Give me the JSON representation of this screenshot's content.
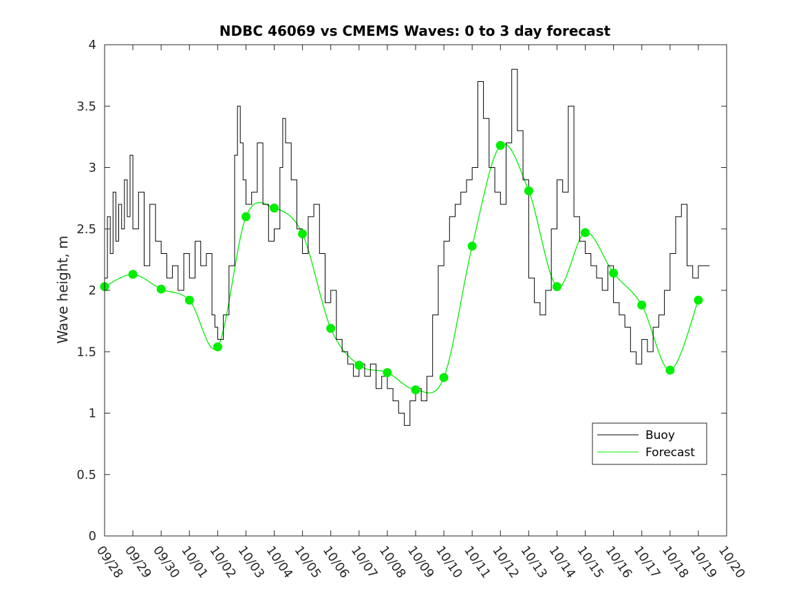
{
  "chart_data": {
    "type": "line",
    "title": "NDBC 46069 vs CMEMS Waves: 0 to 3 day forecast",
    "xlabel": "",
    "ylabel": "Wave height, m",
    "xlim": [
      0,
      22
    ],
    "ylim": [
      0,
      4
    ],
    "y_ticks": [
      0,
      0.5,
      1,
      1.5,
      2,
      2.5,
      3,
      3.5,
      4
    ],
    "y_tick_labels": [
      "0",
      "0.5",
      "1",
      "1.5",
      "2",
      "2.5",
      "3",
      "3.5",
      "4"
    ],
    "x_ticks": [
      0,
      1,
      2,
      3,
      4,
      5,
      6,
      7,
      8,
      9,
      10,
      11,
      12,
      13,
      14,
      15,
      16,
      17,
      18,
      19,
      20,
      21,
      22
    ],
    "x_tick_labels": [
      "09/28",
      "09/29",
      "09/30",
      "10/01",
      "10/02",
      "10/03",
      "10/04",
      "10/05",
      "10/06",
      "10/07",
      "10/08",
      "10/09",
      "10/10",
      "10/11",
      "10/12",
      "10/13",
      "10/14",
      "10/15",
      "10/16",
      "10/17",
      "10/18",
      "10/19",
      "10/20"
    ],
    "grid": false,
    "legend": {
      "placement": "bottom-right",
      "entries": [
        "Buoy",
        "Forecast"
      ]
    },
    "colors": {
      "buoy": "#000000",
      "forecast": "#00ee00"
    },
    "series": [
      {
        "name": "Buoy",
        "x": [
          0,
          0.1,
          0.2,
          0.3,
          0.4,
          0.5,
          0.6,
          0.7,
          0.8,
          0.9,
          1.0,
          1.2,
          1.4,
          1.6,
          1.8,
          2.0,
          2.2,
          2.4,
          2.6,
          2.8,
          3.0,
          3.2,
          3.4,
          3.6,
          3.8,
          3.9,
          4.0,
          4.2,
          4.4,
          4.6,
          4.7,
          4.8,
          4.9,
          5.0,
          5.2,
          5.4,
          5.6,
          5.8,
          6.0,
          6.2,
          6.3,
          6.4,
          6.6,
          6.8,
          7.0,
          7.2,
          7.4,
          7.6,
          7.8,
          8.0,
          8.2,
          8.4,
          8.6,
          8.8,
          9.0,
          9.2,
          9.4,
          9.6,
          9.8,
          10.0,
          10.2,
          10.4,
          10.6,
          10.8,
          11.0,
          11.2,
          11.4,
          11.6,
          11.8,
          12.0,
          12.2,
          12.4,
          12.6,
          12.8,
          13.0,
          13.2,
          13.4,
          13.6,
          13.8,
          14.0,
          14.2,
          14.4,
          14.6,
          14.8,
          15.0,
          15.2,
          15.4,
          15.6,
          15.8,
          16.0,
          16.2,
          16.4,
          16.6,
          16.8,
          17.0,
          17.2,
          17.4,
          17.6,
          17.8,
          18.0,
          18.2,
          18.4,
          18.6,
          18.8,
          19.0,
          19.2,
          19.4,
          19.6,
          19.8,
          20.0,
          20.2,
          20.4,
          20.6,
          20.8,
          21.0,
          21.2,
          21.4
        ],
        "values": [
          2.1,
          2.6,
          2.3,
          2.8,
          2.4,
          2.7,
          2.5,
          2.9,
          2.6,
          3.1,
          2.5,
          2.8,
          2.2,
          2.7,
          2.4,
          2.3,
          2.1,
          2.2,
          2.0,
          2.3,
          2.1,
          2.4,
          2.2,
          2.3,
          1.8,
          1.7,
          1.6,
          1.8,
          2.2,
          3.1,
          3.5,
          3.2,
          2.9,
          2.7,
          2.8,
          3.2,
          2.7,
          2.4,
          2.5,
          3.0,
          3.4,
          3.2,
          2.9,
          2.5,
          2.3,
          2.6,
          2.7,
          2.3,
          1.9,
          2.0,
          1.6,
          1.5,
          1.4,
          1.3,
          1.4,
          1.3,
          1.4,
          1.2,
          1.3,
          1.2,
          1.1,
          1.0,
          0.9,
          1.1,
          1.2,
          1.1,
          1.3,
          1.8,
          2.2,
          2.4,
          2.6,
          2.7,
          2.8,
          2.9,
          3.0,
          3.7,
          3.4,
          3.0,
          2.8,
          2.7,
          3.2,
          3.8,
          3.3,
          2.9,
          2.1,
          1.9,
          1.8,
          2.0,
          2.5,
          2.9,
          2.8,
          3.5,
          2.6,
          2.4,
          2.3,
          2.2,
          2.1,
          2.0,
          2.2,
          1.9,
          1.8,
          1.7,
          1.5,
          1.4,
          1.6,
          1.5,
          1.7,
          1.8,
          2.0,
          2.3,
          2.6,
          2.7,
          2.2,
          2.1,
          2.2,
          2.2,
          2.2
        ]
      },
      {
        "name": "Forecast",
        "x": [
          0,
          1,
          2,
          3,
          4,
          5,
          6,
          7,
          8,
          9,
          10,
          11,
          12,
          13,
          14,
          15,
          16,
          17,
          18,
          19,
          20,
          21
        ],
        "values": [
          2.03,
          2.13,
          2.01,
          1.92,
          1.54,
          2.6,
          2.67,
          2.46,
          1.69,
          1.39,
          1.33,
          1.19,
          1.29,
          2.36,
          3.18,
          2.81,
          2.03,
          2.47,
          2.14,
          1.88,
          1.35,
          1.92
        ]
      }
    ]
  }
}
